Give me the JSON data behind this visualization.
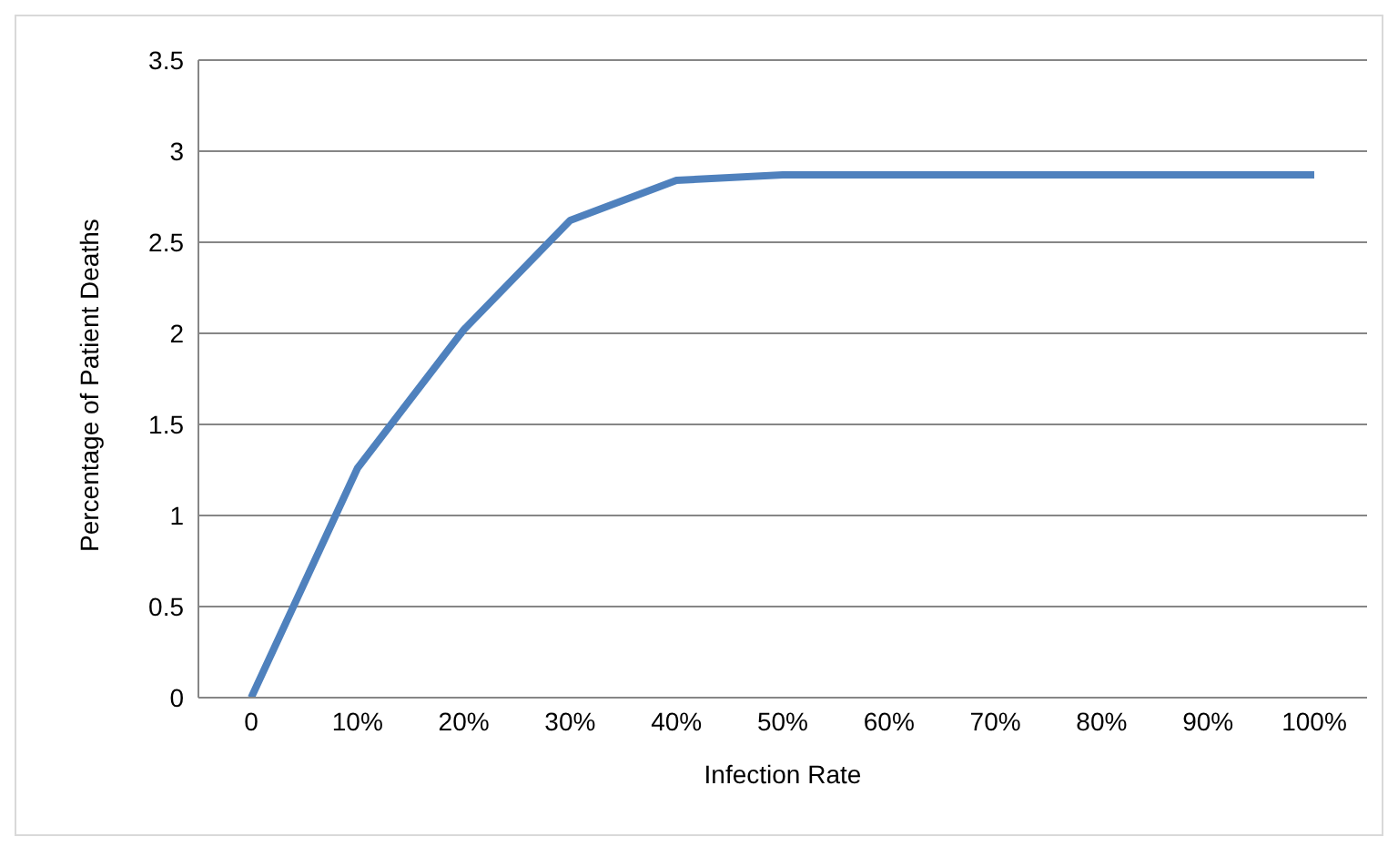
{
  "chart_data": {
    "type": "line",
    "xlabel": "Infection Rate",
    "ylabel": "Percentage of Patient Deaths",
    "categories": [
      "0",
      "10%",
      "20%",
      "30%",
      "40%",
      "50%",
      "60%",
      "70%",
      "80%",
      "90%",
      "100%"
    ],
    "series": [
      {
        "color": "#4f81bd",
        "values": [
          0,
          1.26,
          2.02,
          2.62,
          2.84,
          2.87,
          2.87,
          2.87,
          2.87,
          2.87,
          2.87
        ]
      }
    ],
    "ylim": [
      0,
      3.5
    ],
    "yticks": [
      0,
      0.5,
      1,
      1.5,
      2,
      2.5,
      3,
      3.5
    ],
    "grid": "y",
    "legend": false,
    "marker": "none",
    "line_style": "solid"
  }
}
